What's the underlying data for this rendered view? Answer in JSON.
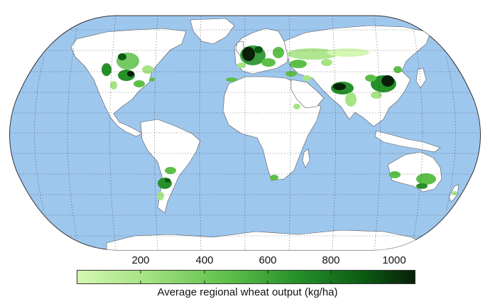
{
  "map": {
    "projection": "Robinson",
    "ocean_color": "#9ec7ee",
    "land_color": "#ffffff",
    "graticule": true,
    "legend": {
      "label": "Average regional wheat output (kg/ha)",
      "ticks": [
        "200",
        "400",
        "600",
        "800",
        "1000"
      ],
      "range": [
        0,
        1050
      ],
      "colors": [
        "#d4f7b2",
        "#a6e384",
        "#5cbf48",
        "#26902a",
        "#0b5a12",
        "#0a1f08"
      ]
    },
    "regions": [
      {
        "name": "North America",
        "level": "high"
      },
      {
        "name": "Europe",
        "level": "very high"
      },
      {
        "name": "Russia / Central Asia",
        "level": "medium"
      },
      {
        "name": "India",
        "level": "high"
      },
      {
        "name": "China",
        "level": "very high"
      },
      {
        "name": "Argentina",
        "level": "medium"
      },
      {
        "name": "Australia",
        "level": "medium"
      }
    ]
  }
}
